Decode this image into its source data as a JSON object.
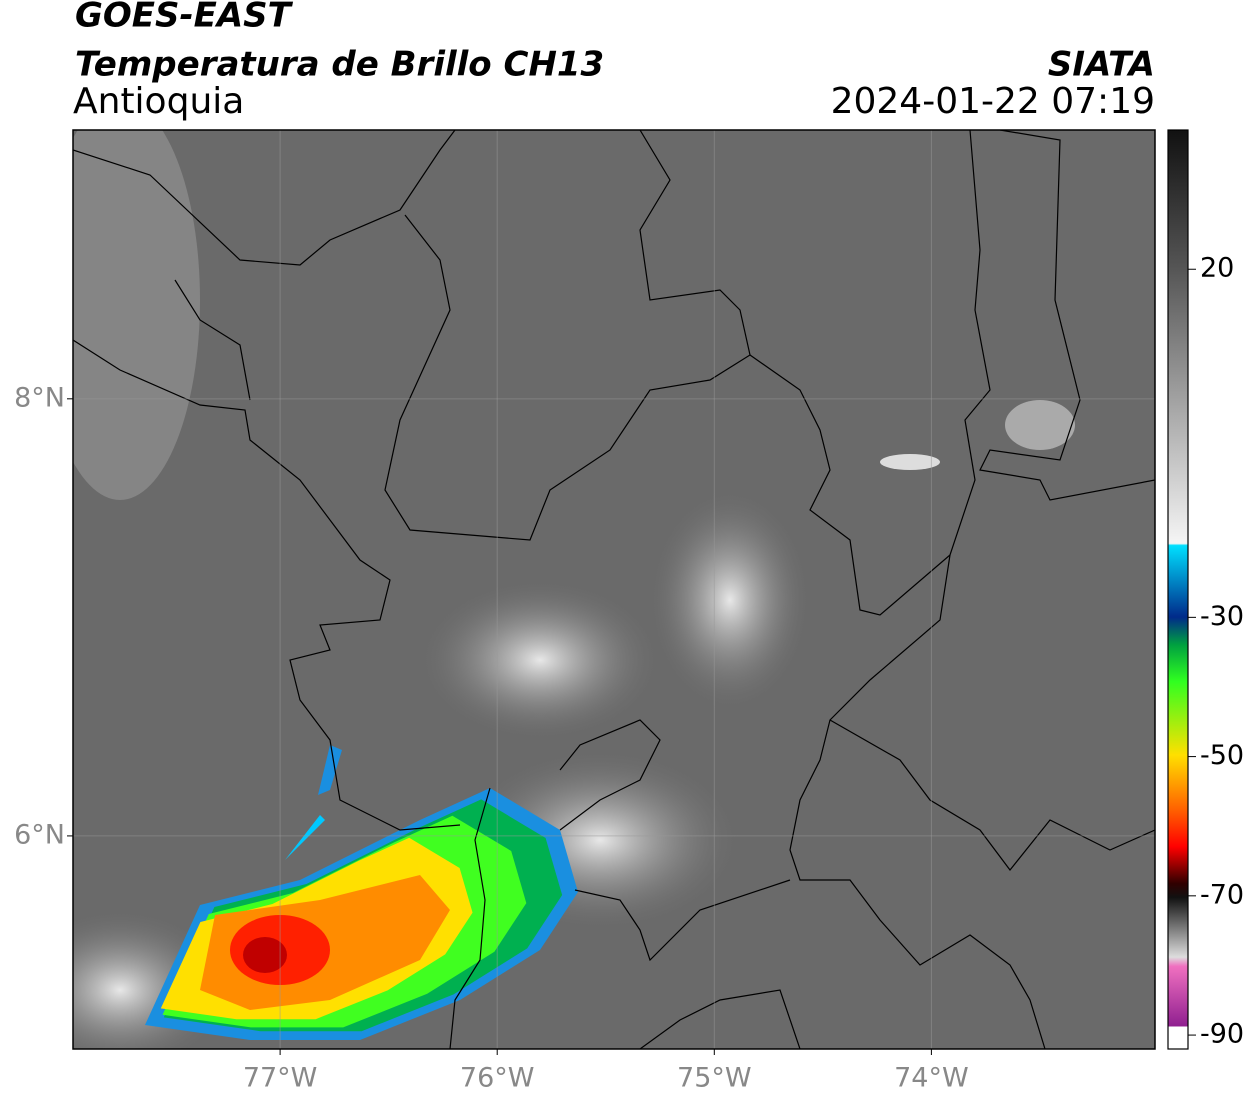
{
  "header": {
    "title": "GOES-EAST",
    "subtitle": "Temperatura de Brillo CH13",
    "region": "Antioquia",
    "source": "SIATA",
    "datetime": "2024-01-22 07:19"
  },
  "map": {
    "xlim": [
      -77.954,
      -72.97
    ],
    "ylim": [
      5.025,
      9.23
    ],
    "xticks": [
      {
        "value": -77,
        "label": "77°W"
      },
      {
        "value": -76,
        "label": "76°W"
      },
      {
        "value": -75,
        "label": "75°W"
      },
      {
        "value": -74,
        "label": "74°W"
      }
    ],
    "yticks": [
      {
        "value": 8,
        "label": "8°N"
      },
      {
        "value": 6,
        "label": "6°N"
      }
    ],
    "grid": true
  },
  "colorbar": {
    "lim": [
      -92,
      40
    ],
    "ticks": [
      20,
      -30,
      -50,
      -70,
      -90
    ]
  }
}
